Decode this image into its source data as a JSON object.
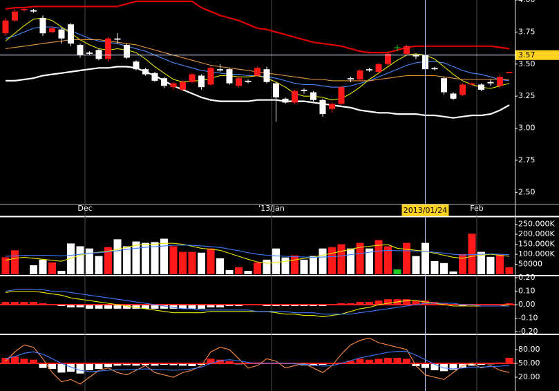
{
  "chart_data": [
    {
      "type": "candlestick",
      "categories": [
        null,
        null,
        null,
        null,
        null,
        null,
        null,
        null,
        "Dec",
        null,
        null,
        null,
        null,
        null,
        null,
        null,
        null,
        null,
        null,
        null,
        null,
        null,
        null,
        null,
        null,
        null,
        null,
        null,
        "'13/Jan",
        null,
        null,
        null,
        null,
        null,
        null,
        null,
        null,
        null,
        null,
        null,
        null,
        null,
        null,
        null,
        null,
        null,
        null,
        null,
        null,
        null,
        "Feb",
        null,
        null,
        null,
        null
      ],
      "open": [
        3.74,
        3.84,
        3.92,
        3.92,
        3.86,
        3.75,
        3.77,
        3.81,
        3.65,
        3.59,
        3.61,
        3.54,
        3.7,
        3.65,
        3.52,
        3.46,
        3.43,
        3.39,
        3.32,
        3.3,
        3.36,
        3.41,
        3.34,
        3.46,
        3.46,
        3.33,
        3.37,
        3.41,
        3.46,
        3.35,
        3.23,
        3.2,
        3.3,
        3.28,
        3.22,
        3.15,
        3.19,
        3.39,
        3.38,
        3.46,
        3.44,
        3.5,
        3.63,
        3.58,
        3.57,
        3.57,
        3.47,
        3.39,
        3.27,
        3.26,
        3.34,
        3.34,
        3.36,
        3.33,
        3.43
      ],
      "high": [
        3.86,
        3.93,
        3.94,
        3.93,
        3.88,
        3.79,
        3.78,
        3.82,
        3.66,
        3.6,
        3.62,
        3.71,
        3.74,
        3.66,
        3.53,
        3.47,
        3.44,
        3.4,
        3.36,
        3.37,
        3.43,
        3.42,
        3.48,
        3.5,
        3.47,
        3.4,
        3.38,
        3.48,
        3.48,
        3.36,
        3.24,
        3.3,
        3.31,
        3.29,
        3.23,
        3.2,
        3.33,
        3.4,
        3.46,
        3.47,
        3.51,
        3.6,
        3.65,
        3.65,
        3.58,
        3.58,
        3.48,
        3.4,
        3.28,
        3.35,
        3.36,
        3.35,
        3.38,
        3.42,
        3.44
      ],
      "low": [
        3.72,
        3.83,
        3.91,
        3.9,
        3.72,
        3.74,
        3.66,
        3.64,
        3.55,
        3.57,
        3.53,
        3.52,
        3.66,
        3.54,
        3.45,
        3.41,
        3.36,
        3.31,
        3.3,
        3.29,
        3.35,
        3.3,
        3.33,
        3.44,
        3.34,
        3.32,
        3.35,
        3.4,
        3.35,
        3.05,
        3.19,
        3.19,
        3.27,
        3.21,
        3.09,
        3.12,
        3.18,
        3.36,
        3.37,
        3.44,
        3.43,
        3.49,
        3.6,
        3.57,
        3.54,
        3.44,
        3.45,
        3.26,
        3.22,
        3.25,
        3.33,
        3.29,
        3.33,
        3.31,
        3.43
      ],
      "close": [
        3.84,
        3.91,
        3.93,
        3.91,
        3.74,
        3.78,
        3.7,
        3.66,
        3.57,
        3.58,
        3.54,
        3.7,
        3.69,
        3.55,
        3.46,
        3.42,
        3.37,
        3.33,
        3.35,
        3.36,
        3.42,
        3.32,
        3.47,
        3.45,
        3.35,
        3.39,
        3.36,
        3.47,
        3.36,
        3.24,
        3.2,
        3.29,
        3.29,
        3.22,
        3.11,
        3.19,
        3.32,
        3.38,
        3.45,
        3.45,
        3.5,
        3.58,
        3.63,
        3.64,
        3.56,
        3.46,
        3.46,
        3.28,
        3.23,
        3.34,
        3.35,
        3.3,
        3.35,
        3.4,
        3.44
      ],
      "up_color": "#ff1a1a",
      "down_color": "#ffffff",
      "flat_color": "#22cc22",
      "lines": [
        {
          "color": "#e00000",
          "values": [
            3.93,
            3.94,
            3.94,
            3.95,
            3.95,
            3.95,
            3.95,
            3.95,
            3.95,
            3.95,
            3.95,
            3.95,
            3.95,
            3.97,
            3.99,
            3.99,
            3.99,
            3.99,
            3.99,
            3.99,
            3.99,
            3.94,
            3.91,
            3.88,
            3.86,
            3.84,
            3.81,
            3.78,
            3.77,
            3.75,
            3.73,
            3.71,
            3.69,
            3.67,
            3.66,
            3.65,
            3.64,
            3.62,
            3.6,
            3.59,
            3.59,
            3.59,
            3.61,
            3.63,
            3.64,
            3.64,
            3.64,
            3.64,
            3.64,
            3.64,
            3.64,
            3.64,
            3.64,
            3.63,
            3.62
          ]
        },
        {
          "color": "#ffffff",
          "values": [
            3.37,
            3.37,
            3.38,
            3.39,
            3.41,
            3.42,
            3.43,
            3.44,
            3.45,
            3.46,
            3.47,
            3.47,
            3.48,
            3.48,
            3.47,
            3.44,
            3.41,
            3.37,
            3.33,
            3.3,
            3.27,
            3.24,
            3.22,
            3.21,
            3.21,
            3.21,
            3.21,
            3.22,
            3.22,
            3.22,
            3.21,
            3.21,
            3.21,
            3.2,
            3.19,
            3.18,
            3.17,
            3.16,
            3.14,
            3.13,
            3.12,
            3.12,
            3.11,
            3.11,
            3.11,
            3.1,
            3.1,
            3.09,
            3.08,
            3.09,
            3.1,
            3.1,
            3.11,
            3.14,
            3.18
          ]
        },
        {
          "color": "#4a8cff",
          "values": [
            3.7,
            3.72,
            3.75,
            3.78,
            3.79,
            3.79,
            3.78,
            3.76,
            3.73,
            3.7,
            3.68,
            3.67,
            3.66,
            3.64,
            3.62,
            3.6,
            3.57,
            3.54,
            3.51,
            3.49,
            3.47,
            3.45,
            3.44,
            3.43,
            3.42,
            3.42,
            3.41,
            3.41,
            3.4,
            3.39,
            3.37,
            3.35,
            3.34,
            3.34,
            3.33,
            3.32,
            3.32,
            3.33,
            3.35,
            3.37,
            3.4,
            3.43,
            3.46,
            3.49,
            3.51,
            3.52,
            3.52,
            3.51,
            3.48,
            3.45,
            3.43,
            3.42,
            3.4,
            3.38,
            3.37
          ]
        },
        {
          "color": "#e8e800",
          "values": [
            3.68,
            3.74,
            3.8,
            3.85,
            3.86,
            3.84,
            3.79,
            3.74,
            3.69,
            3.65,
            3.62,
            3.61,
            3.62,
            3.61,
            3.59,
            3.54,
            3.48,
            3.43,
            3.38,
            3.36,
            3.37,
            3.37,
            3.39,
            3.41,
            3.41,
            3.4,
            3.4,
            3.41,
            3.39,
            3.36,
            3.32,
            3.27,
            3.25,
            3.25,
            3.24,
            3.22,
            3.23,
            3.27,
            3.32,
            3.38,
            3.43,
            3.48,
            3.53,
            3.57,
            3.58,
            3.57,
            3.54,
            3.48,
            3.42,
            3.37,
            3.34,
            3.32,
            3.31,
            3.33,
            3.35
          ]
        },
        {
          "color": "#e8963c",
          "values": [
            3.62,
            3.63,
            3.64,
            3.65,
            3.66,
            3.67,
            3.68,
            3.69,
            3.69,
            3.69,
            3.69,
            3.68,
            3.67,
            3.66,
            3.65,
            3.63,
            3.61,
            3.59,
            3.57,
            3.55,
            3.53,
            3.51,
            3.49,
            3.48,
            3.47,
            3.46,
            3.45,
            3.44,
            3.43,
            3.42,
            3.41,
            3.4,
            3.39,
            3.38,
            3.38,
            3.37,
            3.37,
            3.37,
            3.37,
            3.37,
            3.38,
            3.39,
            3.4,
            3.41,
            3.41,
            3.41,
            3.41,
            3.4,
            3.39,
            3.38,
            3.38,
            3.38,
            3.38,
            3.38,
            3.38
          ]
        }
      ],
      "ylim": [
        2.41,
        4.0
      ],
      "yticks": [
        {
          "value": 4.0,
          "label": "4.00"
        },
        3.75,
        {
          "value": 3.5,
          "label": "3.50"
        },
        3.25,
        {
          "value": 3.0,
          "label": "3.00"
        },
        2.75,
        {
          "value": 2.5,
          "label": "2.50"
        }
      ],
      "crosshair": {
        "index": 45,
        "label": "2013/01/24",
        "y": 3.57,
        "color": "#ffd21f"
      }
    },
    {
      "type": "volume",
      "values": [
        85,
        120,
        null,
        45,
        73,
        59,
        17,
        154,
        140,
        129,
        91,
        136,
        175,
        140,
        164,
        157,
        161,
        178,
        140,
        112,
        112,
        108,
        129,
        80,
        21,
        35,
        17,
        59,
        73,
        129,
        84,
        94,
        73,
        91,
        129,
        136,
        150,
        129,
        157,
        129,
        171,
        140,
        24,
        157,
        91,
        157,
        66,
        56,
        14,
        101,
        203,
        112,
        87,
        98,
        35
      ],
      "lines": [
        {
          "color": "#e8e800",
          "values": [
            70,
            80,
            85,
            80,
            75,
            70,
            65,
            80,
            95,
            105,
            110,
            115,
            125,
            135,
            145,
            150,
            150,
            155,
            155,
            150,
            140,
            130,
            125,
            120,
            105,
            90,
            75,
            62,
            55,
            58,
            65,
            72,
            80,
            85,
            95,
            105,
            115,
            125,
            135,
            140,
            145,
            148,
            130,
            125,
            120,
            115,
            105,
            95,
            85,
            80,
            90,
            95,
            100,
            95,
            90
          ]
        },
        {
          "color": "#3a7bff",
          "values": [
            90,
            92,
            95,
            95,
            95,
            94,
            92,
            95,
            100,
            105,
            108,
            112,
            118,
            124,
            130,
            135,
            138,
            142,
            145,
            146,
            145,
            142,
            138,
            134,
            126,
            118,
            108,
            100,
            95,
            92,
            90,
            88,
            86,
            85,
            86,
            88,
            92,
            98,
            104,
            110,
            116,
            120,
            118,
            118,
            116,
            114,
            110,
            106,
            100,
            96,
            98,
            100,
            102,
            100,
            98
          ]
        }
      ],
      "ylim": [
        0,
        280
      ],
      "yticks": [
        {
          "value": 250,
          "label": "250.000K"
        },
        {
          "value": 200,
          "label": "200.000K"
        },
        {
          "value": 150,
          "label": "150.000K"
        },
        {
          "value": 100,
          "label": "100.000K"
        },
        {
          "value": 50,
          "label": "50000"
        }
      ]
    },
    {
      "type": "oscillator",
      "values": [
        0.02,
        0.02,
        0.02,
        0.02,
        0.01,
        0,
        -0.01,
        -0.02,
        -0.02,
        -0.03,
        -0.03,
        -0.03,
        -0.03,
        -0.03,
        -0.03,
        -0.03,
        -0.03,
        -0.03,
        -0.03,
        -0.03,
        -0.03,
        -0.03,
        -0.02,
        -0.02,
        -0.01,
        -0.01,
        0,
        0,
        -0.01,
        -0.01,
        -0.01,
        -0.01,
        -0.01,
        -0.01,
        -0.01,
        0,
        0.01,
        0.01,
        0.02,
        0.02,
        0.03,
        0.04,
        0.04,
        0.04,
        0.03,
        0.03,
        0.02,
        0.01,
        0,
        -0.01,
        0,
        0,
        0,
        0,
        0.01
      ],
      "up_color": "#ff1a1a",
      "down_color": "#ffffff",
      "ref_line": 0,
      "ref_color": "#ff2020",
      "lines": [
        {
          "color": "#e8e800",
          "values": [
            0.09,
            0.1,
            0.1,
            0.1,
            0.09,
            0.08,
            0.07,
            0.05,
            0.04,
            0.03,
            0.02,
            0.01,
            0,
            -0.01,
            -0.02,
            -0.03,
            -0.04,
            -0.05,
            -0.06,
            -0.06,
            -0.06,
            -0.06,
            -0.05,
            -0.05,
            -0.05,
            -0.05,
            -0.05,
            -0.05,
            -0.05,
            -0.06,
            -0.07,
            -0.07,
            -0.08,
            -0.08,
            -0.09,
            -0.08,
            -0.07,
            -0.05,
            -0.03,
            -0.02,
            0,
            0.01,
            0.02,
            0.03,
            0.03,
            0.02,
            0.01,
            0,
            -0.01,
            -0.01,
            -0.01,
            -0.01,
            -0.01,
            -0.01,
            0
          ]
        },
        {
          "color": "#3a7bff",
          "values": [
            0.1,
            0.11,
            0.11,
            0.11,
            0.11,
            0.1,
            0.1,
            0.09,
            0.08,
            0.07,
            0.06,
            0.05,
            0.04,
            0.03,
            0.02,
            0.01,
            0,
            -0.01,
            -0.02,
            -0.03,
            -0.03,
            -0.04,
            -0.04,
            -0.04,
            -0.04,
            -0.04,
            -0.04,
            -0.05,
            -0.05,
            -0.05,
            -0.05,
            -0.06,
            -0.06,
            -0.06,
            -0.07,
            -0.07,
            -0.07,
            -0.07,
            -0.06,
            -0.05,
            -0.04,
            -0.03,
            -0.02,
            -0.01,
            0,
            0.01,
            0.01,
            0.01,
            0.01,
            0,
            0,
            -0.01,
            -0.01,
            -0.01,
            -0.01
          ]
        }
      ],
      "ylim": [
        -0.21,
        0.21
      ],
      "yticks": [
        {
          "value": 0.2,
          "label": "0.20"
        },
        {
          "value": 0.1,
          "label": "0.10"
        },
        {
          "value": 0,
          "label": "0.00"
        },
        {
          "value": -0.1,
          "label": "-0.10"
        },
        {
          "value": -0.2,
          "label": "-0.20"
        }
      ]
    },
    {
      "type": "oscillator",
      "values": [
        62,
        65,
        60,
        58,
        40,
        38,
        30,
        32,
        28,
        35,
        38,
        42,
        45,
        46,
        45,
        46,
        45,
        47,
        46,
        45,
        44,
        47,
        60,
        58,
        55,
        48,
        50,
        52,
        50,
        50,
        50,
        50,
        46,
        45,
        47,
        50,
        52,
        56,
        60,
        58,
        60,
        62,
        62,
        60,
        44,
        40,
        35,
        33,
        36,
        40,
        45,
        47,
        48,
        52,
        62
      ],
      "up_color": "#ff1a1a",
      "down_color": "#ffffff",
      "ref_line": 50,
      "ref_color": "#ff2020",
      "lines": [
        {
          "color": "#ff8c40",
          "values": [
            55,
            75,
            90,
            85,
            60,
            30,
            10,
            15,
            5,
            20,
            35,
            40,
            30,
            25,
            35,
            45,
            30,
            25,
            20,
            30,
            35,
            45,
            75,
            85,
            80,
            60,
            40,
            45,
            60,
            55,
            40,
            45,
            50,
            40,
            30,
            45,
            70,
            90,
            100,
            105,
            95,
            90,
            85,
            80,
            45,
            25,
            20,
            15,
            30,
            45,
            50,
            40,
            45,
            35,
            30
          ]
        },
        {
          "color": "#3a7bff",
          "values": [
            60,
            65,
            72,
            75,
            70,
            60,
            50,
            42,
            35,
            32,
            33,
            35,
            36,
            36,
            37,
            38,
            37,
            36,
            35,
            36,
            38,
            42,
            50,
            56,
            58,
            56,
            52,
            50,
            50,
            51,
            50,
            49,
            48,
            46,
            44,
            45,
            50,
            56,
            62,
            66,
            70,
            74,
            76,
            76,
            68,
            58,
            48,
            40,
            38,
            40,
            42,
            42,
            43,
            44,
            45
          ]
        }
      ],
      "ylim": [
        -10,
        110
      ],
      "yticks": [
        {
          "value": 80,
          "label": "80.00"
        },
        {
          "value": 50,
          "label": "50.00"
        },
        {
          "value": 20,
          "label": "20.00"
        }
      ]
    }
  ]
}
